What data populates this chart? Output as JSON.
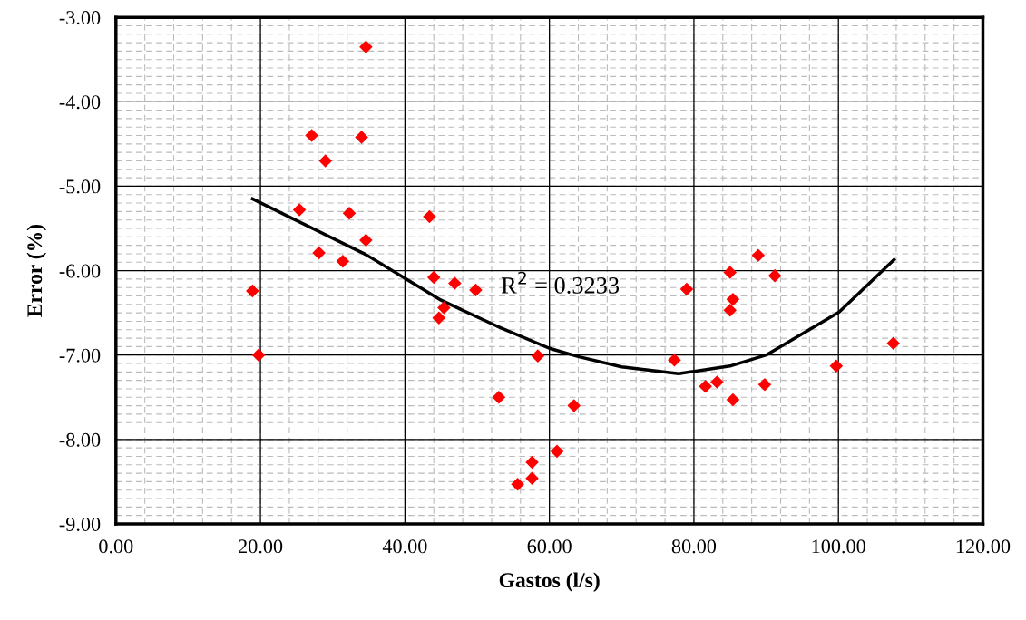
{
  "chart_data": {
    "type": "scatter",
    "xlabel": "Gastos (l/s)",
    "ylabel": "Error (%)",
    "xlim": [
      0,
      120
    ],
    "ylim": [
      -9,
      -3
    ],
    "xticks": [
      {
        "value": 0,
        "label": "0.00"
      },
      {
        "value": 20,
        "label": "20.00"
      },
      {
        "value": 40,
        "label": "40.00"
      },
      {
        "value": 60,
        "label": "60.00"
      },
      {
        "value": 80,
        "label": "80.00"
      },
      {
        "value": 100,
        "label": "100.00"
      },
      {
        "value": 120,
        "label": "120.00"
      }
    ],
    "yticks": [
      {
        "value": -9,
        "label": "-9.00"
      },
      {
        "value": -8,
        "label": "-8.00"
      },
      {
        "value": -7,
        "label": "-7.00"
      },
      {
        "value": -6,
        "label": "-6.00"
      },
      {
        "value": -5,
        "label": "-5.00"
      },
      {
        "value": -4,
        "label": "-4.00"
      },
      {
        "value": -3,
        "label": "-3.00"
      }
    ],
    "grid": true,
    "marker": "diamond",
    "legend": false,
    "annotations": [
      "R$^{2}$ = 0.3233"
    ],
    "series": [
      {
        "color": "#ff0000",
        "x": [
          34.6,
          27.1,
          34.0,
          29.0,
          25.4,
          32.3,
          43.4,
          34.6,
          28.1,
          31.4,
          18.9,
          44.0,
          46.9,
          49.8,
          45.4,
          44.7,
          19.75,
          58.4,
          53.0,
          63.4,
          61.05,
          57.6,
          57.6,
          55.6,
          88.9,
          85.0,
          91.2,
          79.0,
          85.4,
          85.0,
          107.6,
          77.3,
          99.7,
          83.2,
          81.6,
          89.8,
          85.4
        ],
        "values": [
          -3.35,
          -4.4,
          -4.42,
          -4.7,
          -5.28,
          -5.32,
          -5.36,
          -5.64,
          -5.79,
          -5.89,
          -6.24,
          -6.08,
          -6.15,
          -6.23,
          -6.44,
          -6.56,
          -7.0,
          -7.01,
          -7.5,
          -7.6,
          -8.14,
          -8.27,
          -8.46,
          -8.53,
          -5.82,
          -6.02,
          -6.06,
          -6.22,
          -6.34,
          -6.47,
          -6.86,
          -7.06,
          -7.13,
          -7.32,
          -7.37,
          -7.35,
          -7.53
        ]
      },
      {
        "type": "line",
        "color": "#000000",
        "marker": "none",
        "line_style": "solid",
        "x": [
          18.9,
          34.6,
          40,
          45,
          52.8,
          60,
          64.1,
          70,
          77.9,
          85,
          90,
          100.1,
          107.7
        ],
        "values": [
          -5.15,
          -5.81,
          -6.09,
          -6.35,
          -6.66,
          -6.92,
          -7.02,
          -7.14,
          -7.22,
          -7.13,
          -7.0,
          -6.49,
          -5.87
        ]
      }
    ]
  }
}
